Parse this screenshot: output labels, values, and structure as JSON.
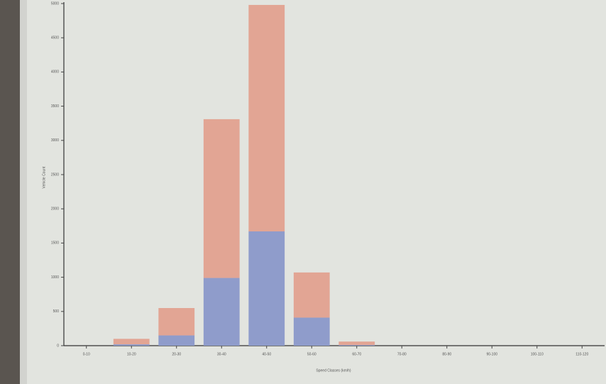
{
  "chart_data": {
    "type": "stacked_bar",
    "x_label": "Speed Classes (km/h)",
    "y_label": "Vehicle Count",
    "categories": [
      "0-10",
      "10-20",
      "20-30",
      "30-40",
      "40-50",
      "50-60",
      "60-70",
      "70-80",
      "80-90",
      "90-100",
      "100-110",
      "110-120"
    ],
    "series": [
      {
        "color": "#8f9ccb",
        "values": [
          0,
          20,
          150,
          990,
          1670,
          410,
          10,
          0,
          0,
          0,
          0,
          0
        ]
      },
      {
        "color": "#e2a594",
        "values": [
          0,
          80,
          400,
          2320,
          3310,
          660,
          50,
          0,
          0,
          0,
          0,
          0
        ]
      }
    ],
    "ylim": [
      0,
      5000
    ],
    "yticks": [
      0,
      500,
      1000,
      1500,
      2000,
      2500,
      3000,
      3500,
      4000,
      4500,
      5000
    ]
  }
}
